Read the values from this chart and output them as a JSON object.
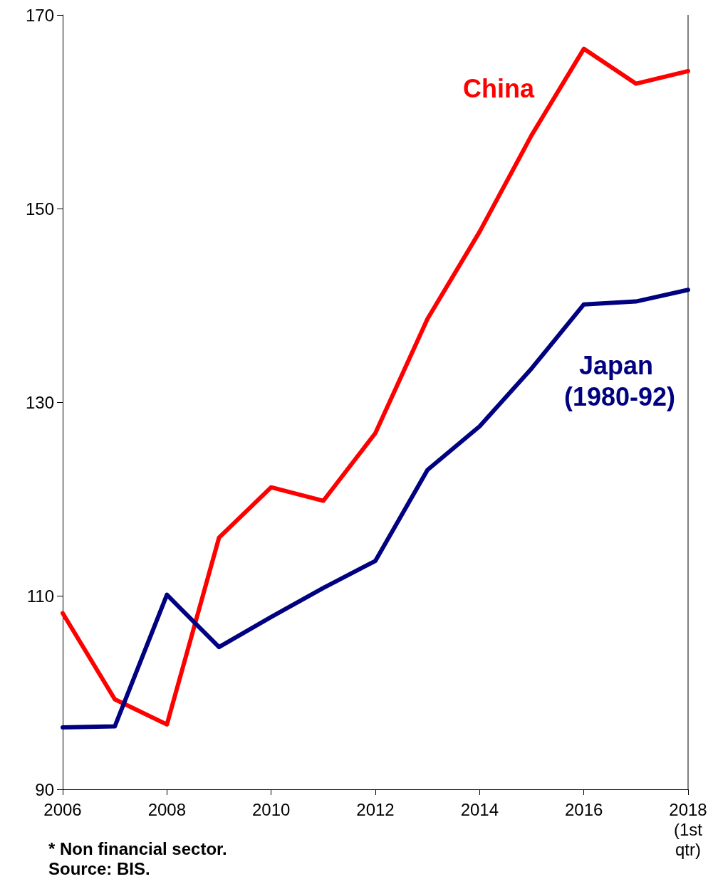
{
  "chart_data": {
    "type": "line",
    "x": [
      2006,
      2007,
      2008,
      2009,
      2010,
      2011,
      2012,
      2013,
      2014,
      2015,
      2016,
      2017,
      2018
    ],
    "series": [
      {
        "name": "China",
        "color": "#ff0000",
        "values": [
          108.2,
          99.3,
          96.7,
          116.0,
          121.2,
          119.8,
          126.8,
          138.6,
          147.6,
          157.6,
          166.5,
          162.9,
          164.2
        ]
      },
      {
        "name": "Japan (1980-92)",
        "color": "#000080",
        "values": [
          96.4,
          96.5,
          110.1,
          104.7,
          107.8,
          110.8,
          113.6,
          123.0,
          127.5,
          133.5,
          140.1,
          140.4,
          141.6
        ]
      }
    ],
    "xlim": [
      2006,
      2018
    ],
    "xticks": [
      2006,
      2008,
      2010,
      2012,
      2014,
      2016,
      {
        "value": 2018,
        "label": "2018 (1st qtr)"
      }
    ],
    "ylim": [
      90,
      170
    ],
    "yticks": [
      90,
      110,
      130,
      150,
      170
    ],
    "grid": false,
    "legend": false,
    "marker": "none",
    "line_style": "solid",
    "annotations": [
      "* Non financial sector.",
      "Source: BIS."
    ]
  }
}
